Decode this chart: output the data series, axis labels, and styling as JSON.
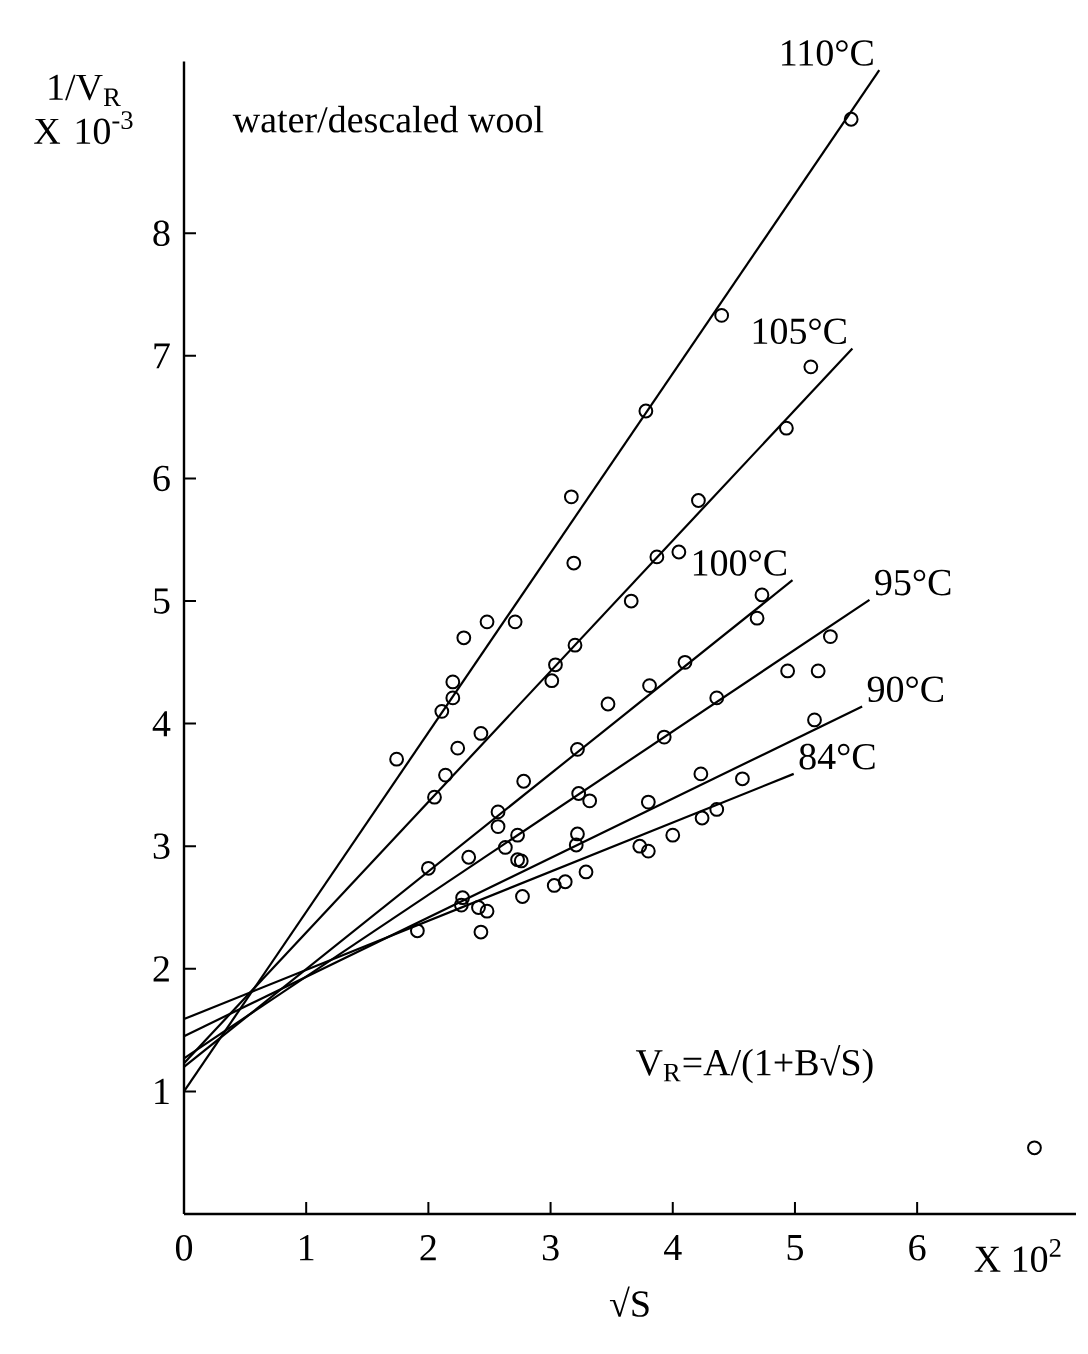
{
  "chart_data": {
    "type": "scatter",
    "xlabel": "√S",
    "ylabel": "1/V$_{R}$ X 10$^{-3}$",
    "xlim": [
      0,
      7.3
    ],
    "ylim": [
      0,
      9.4
    ],
    "xticks": [
      0,
      1,
      2,
      3,
      4,
      5,
      6
    ],
    "yticks": [
      1,
      2,
      3,
      4,
      5,
      6,
      7,
      8
    ],
    "marker": "circle",
    "line_style": "solid",
    "annotations": [
      "water/descaled wool",
      "V$_{R}$=A/(1+B√S)",
      "X 10$^{2}$"
    ],
    "series": [
      {
        "type": "line",
        "marker": "none",
        "name": "110°C",
        "color": "#000000",
        "x": [
          0,
          5.69
        ],
        "values": [
          1.0,
          9.33
        ]
      },
      {
        "color": "#000000",
        "x": [
          5.46,
          4.4,
          3.78,
          3.17,
          3.19,
          2.71,
          2.48,
          2.29,
          2.2,
          2.2,
          2.11,
          1.74
        ],
        "values": [
          8.93,
          7.33,
          6.55,
          5.85,
          5.31,
          4.83,
          4.83,
          4.7,
          4.34,
          4.21,
          4.1,
          3.71
        ]
      },
      {
        "type": "line",
        "marker": "none",
        "name": "105°C",
        "color": "#000000",
        "x": [
          0,
          5.47
        ],
        "values": [
          1.23,
          7.06
        ]
      },
      {
        "color": "#000000",
        "x": [
          5.13,
          4.93,
          4.21,
          4.05,
          3.87,
          3.66,
          3.2,
          3.04,
          3.01,
          2.43,
          2.24,
          2.14,
          2.05
        ],
        "values": [
          6.91,
          6.41,
          5.82,
          5.4,
          5.36,
          5.0,
          4.64,
          4.48,
          4.35,
          3.92,
          3.8,
          3.58,
          3.4
        ]
      },
      {
        "type": "line",
        "marker": "none",
        "name": "100°C",
        "color": "#000000",
        "x": [
          0,
          4.98
        ],
        "values": [
          1.2,
          5.17
        ]
      },
      {
        "color": "#000000",
        "x": [
          4.73,
          4.69,
          4.1,
          3.81,
          3.47,
          3.22,
          2.78,
          2.57,
          2.57,
          2.33,
          2.0
        ],
        "values": [
          5.05,
          4.86,
          4.5,
          4.31,
          4.16,
          3.79,
          3.53,
          3.28,
          3.16,
          2.91,
          2.82
        ]
      },
      {
        "type": "line",
        "marker": "none",
        "name": "95°C",
        "color": "#000000",
        "x": [
          0,
          5.61
        ],
        "values": [
          1.27,
          5.01
        ]
      },
      {
        "color": "#000000",
        "x": [
          5.29,
          4.94,
          5.19,
          4.36,
          3.93,
          3.32,
          3.23,
          2.73,
          2.63,
          2.76
        ],
        "values": [
          4.71,
          4.43,
          4.43,
          4.21,
          3.89,
          3.37,
          3.43,
          3.09,
          2.99,
          2.88
        ]
      },
      {
        "type": "line",
        "marker": "none",
        "name": "90°C",
        "color": "#000000",
        "x": [
          0,
          5.55
        ],
        "values": [
          1.45,
          4.14
        ]
      },
      {
        "color": "#000000",
        "x": [
          5.16,
          4.23,
          3.8,
          3.22,
          3.21,
          2.73,
          2.28,
          2.27
        ],
        "values": [
          4.03,
          3.59,
          3.36,
          3.1,
          3.01,
          2.89,
          2.58,
          2.52
        ]
      },
      {
        "type": "line",
        "marker": "none",
        "name": "84°C",
        "color": "#000000",
        "x": [
          0,
          4.99
        ],
        "values": [
          1.59,
          3.59
        ]
      },
      {
        "color": "#000000",
        "x": [
          4.57,
          4.36,
          4.24,
          4.0,
          3.8,
          3.73,
          3.29,
          3.12,
          3.03,
          2.77,
          2.48,
          2.43,
          2.41,
          1.91
        ],
        "values": [
          3.55,
          3.3,
          3.23,
          3.09,
          2.96,
          3.0,
          2.79,
          2.71,
          2.68,
          2.59,
          2.47,
          2.3,
          2.5,
          2.31
        ]
      },
      {
        "color": "#000000",
        "x": [
          6.96
        ],
        "values": [
          0.54
        ]
      }
    ]
  }
}
